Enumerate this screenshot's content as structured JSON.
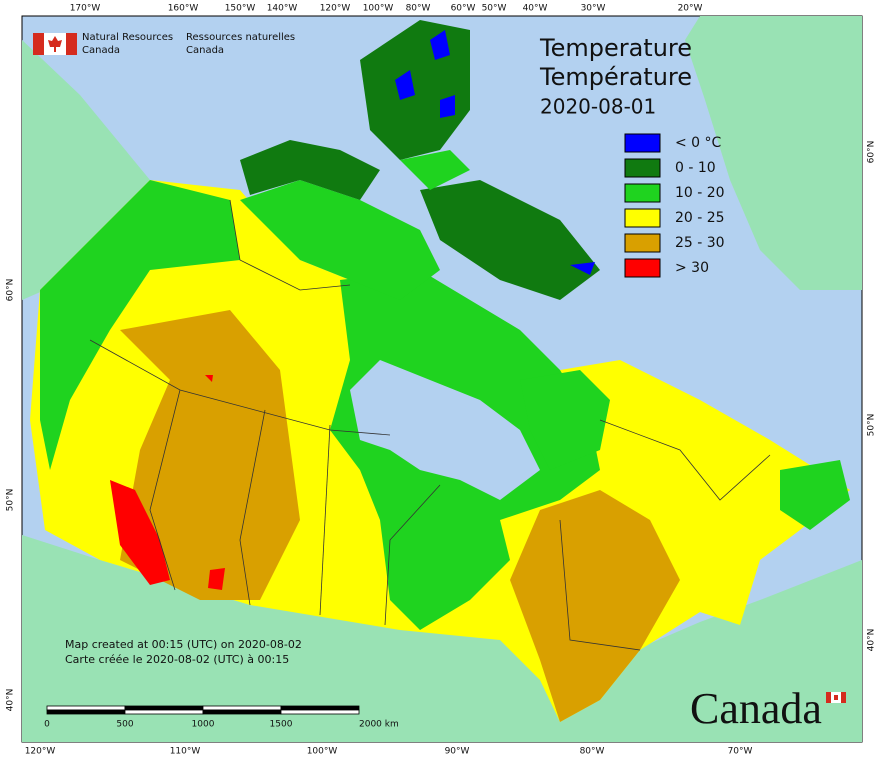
{
  "branding": {
    "lines": [
      "Natural Resources",
      "Canada",
      "Ressources naturelles",
      "Canada"
    ],
    "wordmark": "Canada"
  },
  "title": [
    "Temperature",
    "Température"
  ],
  "date": "2020-08-01",
  "legend": [
    {
      "label": "< 0 °C",
      "color": "#0000ff"
    },
    {
      "label": "0 - 10",
      "color": "#107a10"
    },
    {
      "label": "10 - 20",
      "color": "#1fd31f"
    },
    {
      "label": "20 - 25",
      "color": "#ffff00"
    },
    {
      "label": "25 - 30",
      "color": "#d9a000"
    },
    {
      "label": "> 30",
      "color": "#ff0000"
    }
  ],
  "graticule": {
    "top": [
      "170°W",
      "160°W",
      "150°W",
      "140°W",
      "120°W",
      "100°W",
      "80°W",
      "60°W",
      "50°W",
      "40°W",
      "30°W",
      "20°W"
    ],
    "bottom": [
      "120°W",
      "110°W",
      "100°W",
      "90°W",
      "80°W",
      "70°W"
    ],
    "left": [
      "60°N",
      "50°N",
      "40°N"
    ],
    "right": [
      "60°N",
      "50°N",
      "40°N"
    ]
  },
  "credits": [
    "Map created at 00:15 (UTC) on 2020-08-02",
    "Carte créée le 2020-08-02 (UTC) à 00:15"
  ],
  "scale_bar": [
    "0",
    "500",
    "1000",
    "1500",
    "2000 km"
  ]
}
